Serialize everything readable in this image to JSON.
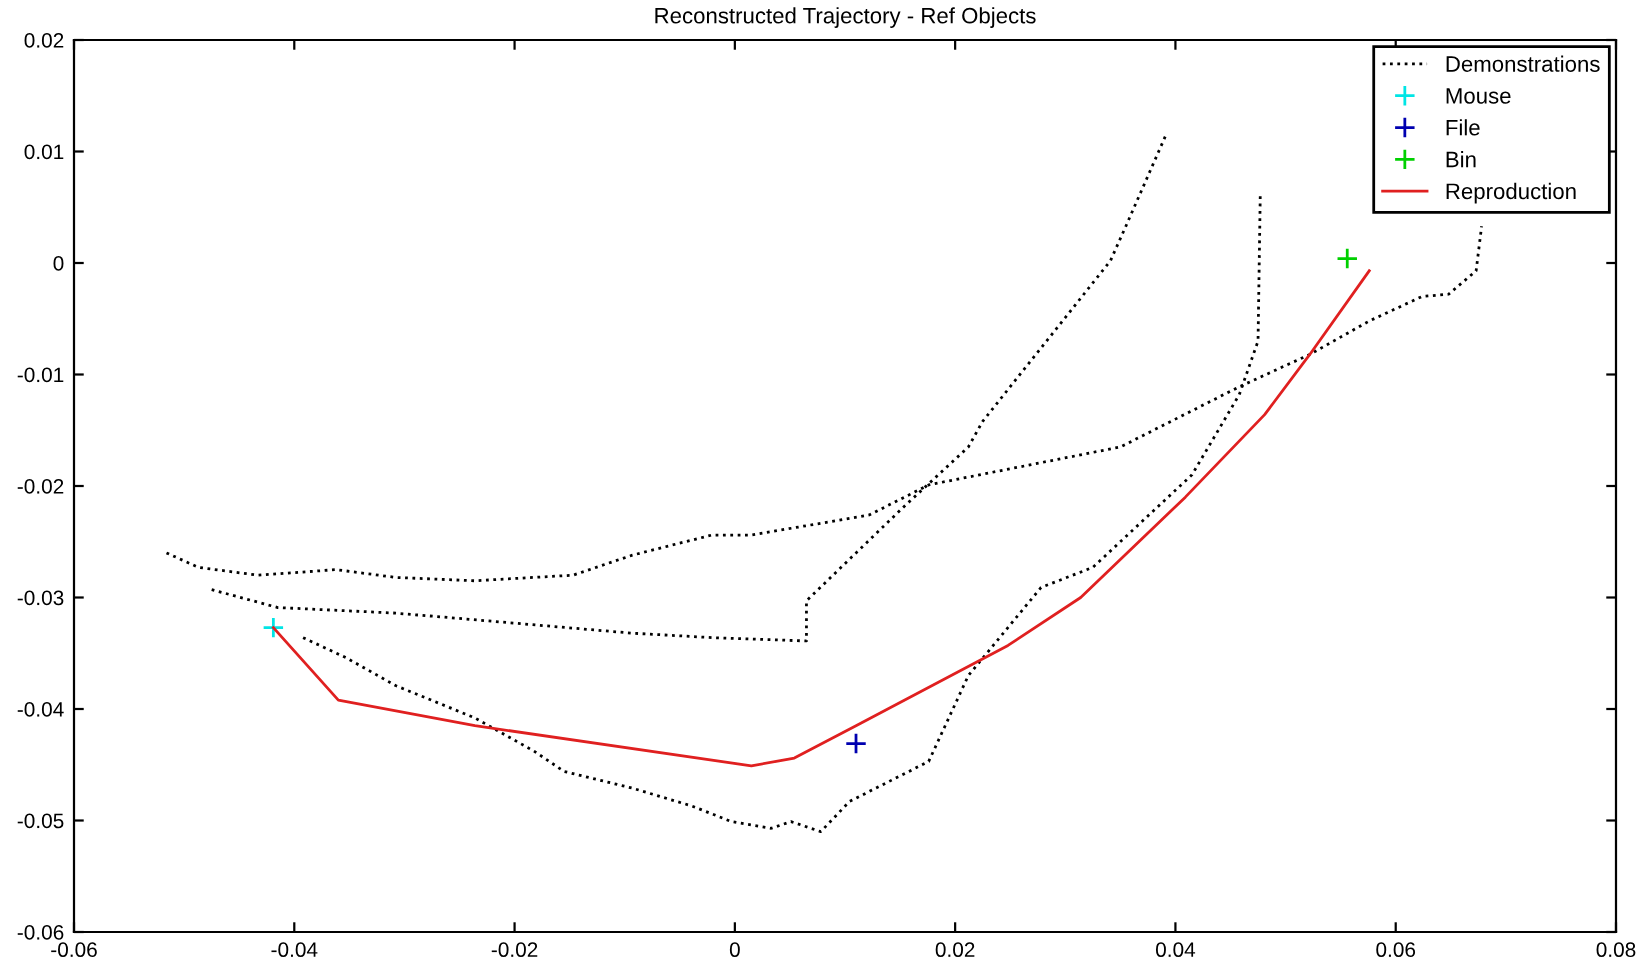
{
  "chart_data": {
    "type": "line",
    "title": "Reconstructed Trajectory - Ref Objects",
    "xlim": [
      -0.06,
      0.08
    ],
    "xticks": [
      -0.06,
      -0.04,
      -0.02,
      0,
      0.02,
      0.04,
      0.06,
      0.08
    ],
    "ylim": [
      -0.06,
      0.02
    ],
    "yticks": [
      -0.06,
      -0.05,
      -0.04,
      -0.03,
      -0.02,
      -0.01,
      0,
      0.01,
      0.02
    ],
    "grid": false,
    "legend": "top right",
    "series": [
      {
        "name": "Demonstrations",
        "line_style": "dotted",
        "color": "#000000",
        "x": [
          -0.0516,
          -0.0487,
          -0.0433,
          -0.0362,
          -0.0308,
          -0.0236,
          -0.0147,
          -0.0093,
          -0.0021,
          0.0015,
          0.0122,
          0.0176,
          0.035,
          0.0458,
          0.0522,
          0.0576,
          0.0624,
          0.0648,
          0.0673,
          0.0678
        ],
        "values": [
          -0.026,
          -0.0273,
          -0.028,
          -0.0275,
          -0.0282,
          -0.0285,
          -0.028,
          -0.0262,
          -0.0244,
          -0.0244,
          -0.0226,
          -0.0199,
          -0.0165,
          -0.0111,
          -0.0082,
          -0.0052,
          -0.003,
          -0.0028,
          -0.0007,
          0.0033
        ]
      },
      {
        "line_style": "dotted",
        "color": "#000000",
        "x": [
          -0.0475,
          -0.0415,
          -0.0308,
          -0.02,
          -0.0093,
          -0.0021,
          0.0065,
          0.0065,
          0.0153,
          0.0212,
          0.0225,
          0.0341,
          0.0355,
          0.0391
        ],
        "values": [
          -0.0293,
          -0.0309,
          -0.0314,
          -0.0323,
          -0.0332,
          -0.0336,
          -0.0339,
          -0.0303,
          -0.0219,
          -0.0165,
          -0.0142,
          0.0002,
          0.0033,
          0.0114
        ]
      },
      {
        "line_style": "dotted",
        "color": "#000000",
        "x": [
          -0.0392,
          -0.0353,
          -0.0308,
          -0.0236,
          -0.0182,
          -0.0155,
          -0.0093,
          -0.0039,
          -0.0003,
          0.0033,
          0.0051,
          0.0078,
          0.0104,
          0.0176,
          0.0212,
          0.0278,
          0.0325,
          0.0415,
          0.0458,
          0.0475,
          0.0477
        ],
        "values": [
          -0.0336,
          -0.0354,
          -0.0379,
          -0.0408,
          -0.0438,
          -0.0456,
          -0.0471,
          -0.0487,
          -0.0501,
          -0.0507,
          -0.0501,
          -0.051,
          -0.0483,
          -0.0447,
          -0.037,
          -0.0291,
          -0.0273,
          -0.019,
          -0.0118,
          -0.007,
          0.006
        ]
      },
      {
        "name": "Mouse",
        "type": "scatter",
        "marker": "cross",
        "color": "#00e5e5",
        "x": [
          -0.0419
        ],
        "values": [
          -0.0327
        ]
      },
      {
        "name": "File",
        "type": "scatter",
        "marker": "cross",
        "color": "#0000b0",
        "x": [
          0.011
        ],
        "values": [
          -0.0431
        ]
      },
      {
        "name": "Bin",
        "type": "scatter",
        "marker": "cross",
        "color": "#00d000",
        "x": [
          0.0556
        ],
        "values": [
          0.0004
        ]
      },
      {
        "name": "Reproduction",
        "line_style": "solid",
        "color": "#e02020",
        "x": [
          -0.0419,
          -0.036,
          -0.0236,
          0.0015,
          0.0054,
          0.011,
          0.0248,
          0.0314,
          0.0409,
          0.0481,
          0.0522,
          0.0576
        ],
        "values": [
          -0.0327,
          -0.0392,
          -0.0415,
          -0.0451,
          -0.0444,
          -0.0415,
          -0.0343,
          -0.03,
          -0.021,
          -0.0136,
          -0.0082,
          -0.0007
        ]
      }
    ]
  }
}
